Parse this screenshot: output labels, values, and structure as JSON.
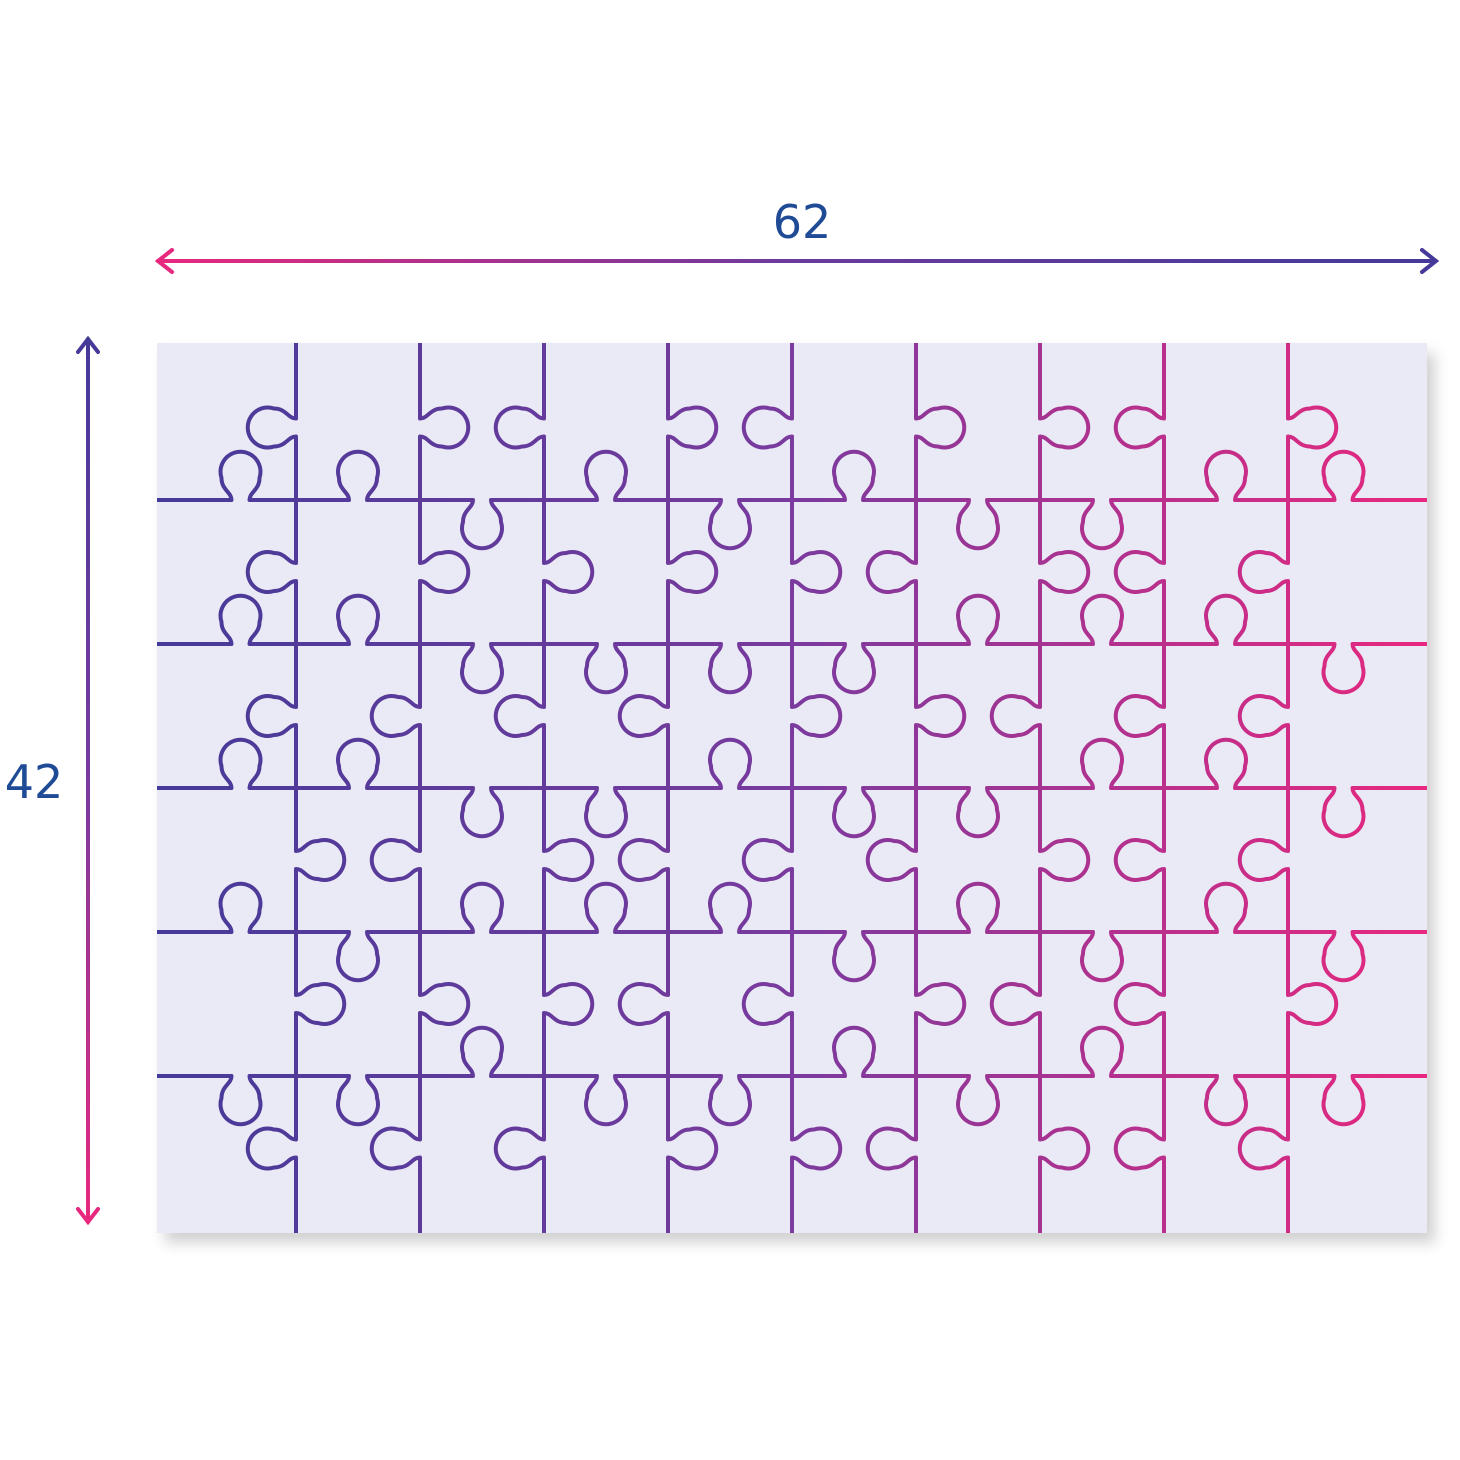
{
  "dimensions": {
    "width_label": "62",
    "height_label": "42"
  },
  "colors": {
    "start": "#453a98",
    "end": "#e8287e",
    "board": "#e9eaf6",
    "label": "#1f4a96"
  },
  "puzzle": {
    "columns": 10,
    "rows": 6,
    "horizontal_tabs": [
      [
        "up",
        "up",
        "down",
        "up",
        "down",
        "up",
        "down",
        "down",
        "up",
        "up"
      ],
      [
        "up",
        "up",
        "down",
        "down",
        "down",
        "down",
        "up",
        "up",
        "up",
        "down"
      ],
      [
        "up",
        "up",
        "down",
        "down",
        "up",
        "down",
        "down",
        "up",
        "up",
        "down"
      ],
      [
        "up",
        "down",
        "up",
        "up",
        "up",
        "down",
        "up",
        "down",
        "up",
        "down"
      ],
      [
        "down",
        "down",
        "up",
        "down",
        "down",
        "up",
        "down",
        "up",
        "down",
        "down"
      ]
    ],
    "vertical_tabs": [
      [
        "left",
        "left",
        "left",
        "right",
        "right",
        "left"
      ],
      [
        "right",
        "right",
        "left",
        "left",
        "right",
        "left"
      ],
      [
        "left",
        "right",
        "left",
        "right",
        "right",
        "left"
      ],
      [
        "right",
        "right",
        "left",
        "left",
        "left",
        "right"
      ],
      [
        "left",
        "right",
        "right",
        "left",
        "left",
        "right"
      ],
      [
        "right",
        "left",
        "right",
        "left",
        "right",
        "left"
      ],
      [
        "right",
        "right",
        "left",
        "right",
        "left",
        "right"
      ],
      [
        "left",
        "left",
        "left",
        "left",
        "left",
        "left"
      ],
      [
        "right",
        "left",
        "left",
        "left",
        "right",
        "left"
      ]
    ]
  }
}
